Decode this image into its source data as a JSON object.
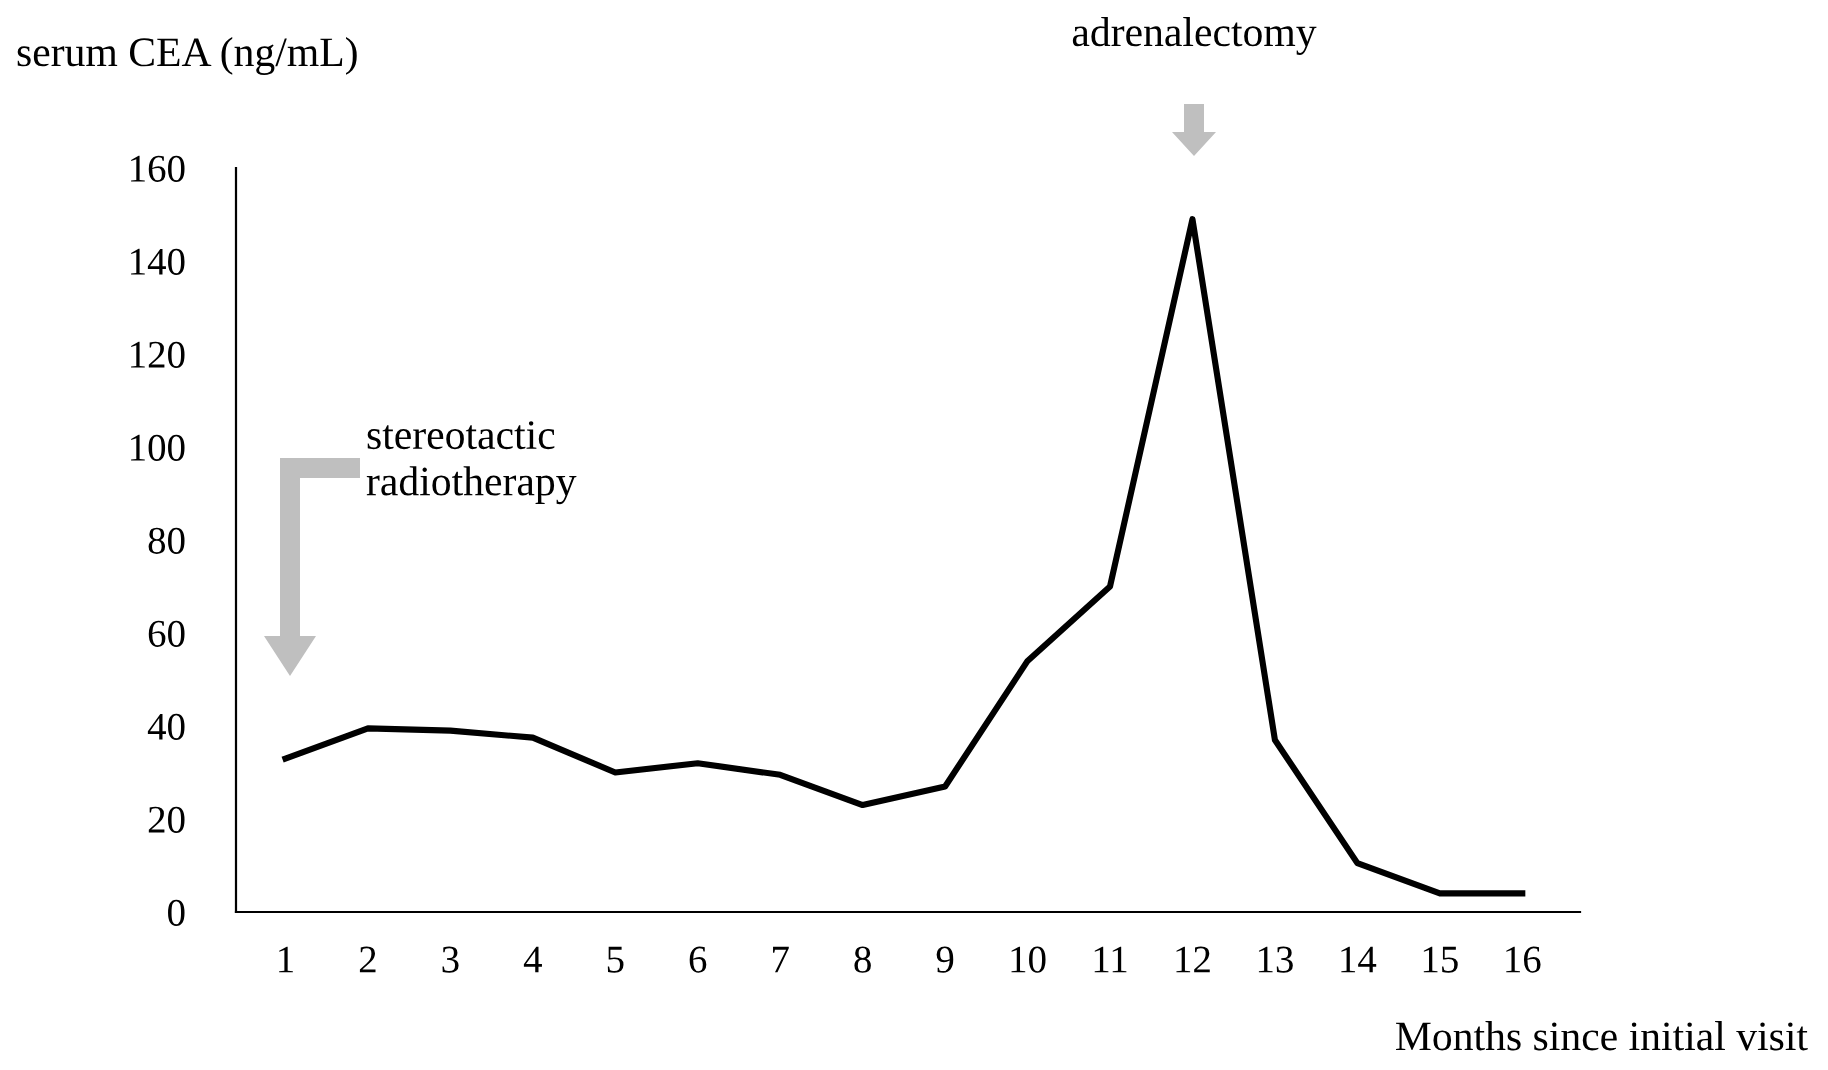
{
  "chart_data": {
    "type": "line",
    "ylabel": "serum CEA (ng/mL)",
    "xlabel": "Months since initial visit",
    "categories": [
      "1",
      "2",
      "3",
      "4",
      "5",
      "6",
      "7",
      "8",
      "9",
      "10",
      "11",
      "12",
      "13",
      "14",
      "15",
      "16"
    ],
    "series": [
      {
        "color": "#000000",
        "values": [
          33,
          39.5,
          39,
          37.5,
          30,
          32,
          29.5,
          23,
          27,
          54,
          70,
          149,
          37,
          10.5,
          4,
          4
        ]
      }
    ],
    "ylim": [
      0,
      160
    ],
    "yticks": [
      0,
      20,
      40,
      60,
      80,
      100,
      120,
      140,
      160
    ],
    "grid": false,
    "legend": false,
    "marker": "none",
    "line_style": "solid",
    "annotations": [
      "stereotactic\nradiotherapy",
      "adrenalectomy"
    ]
  }
}
